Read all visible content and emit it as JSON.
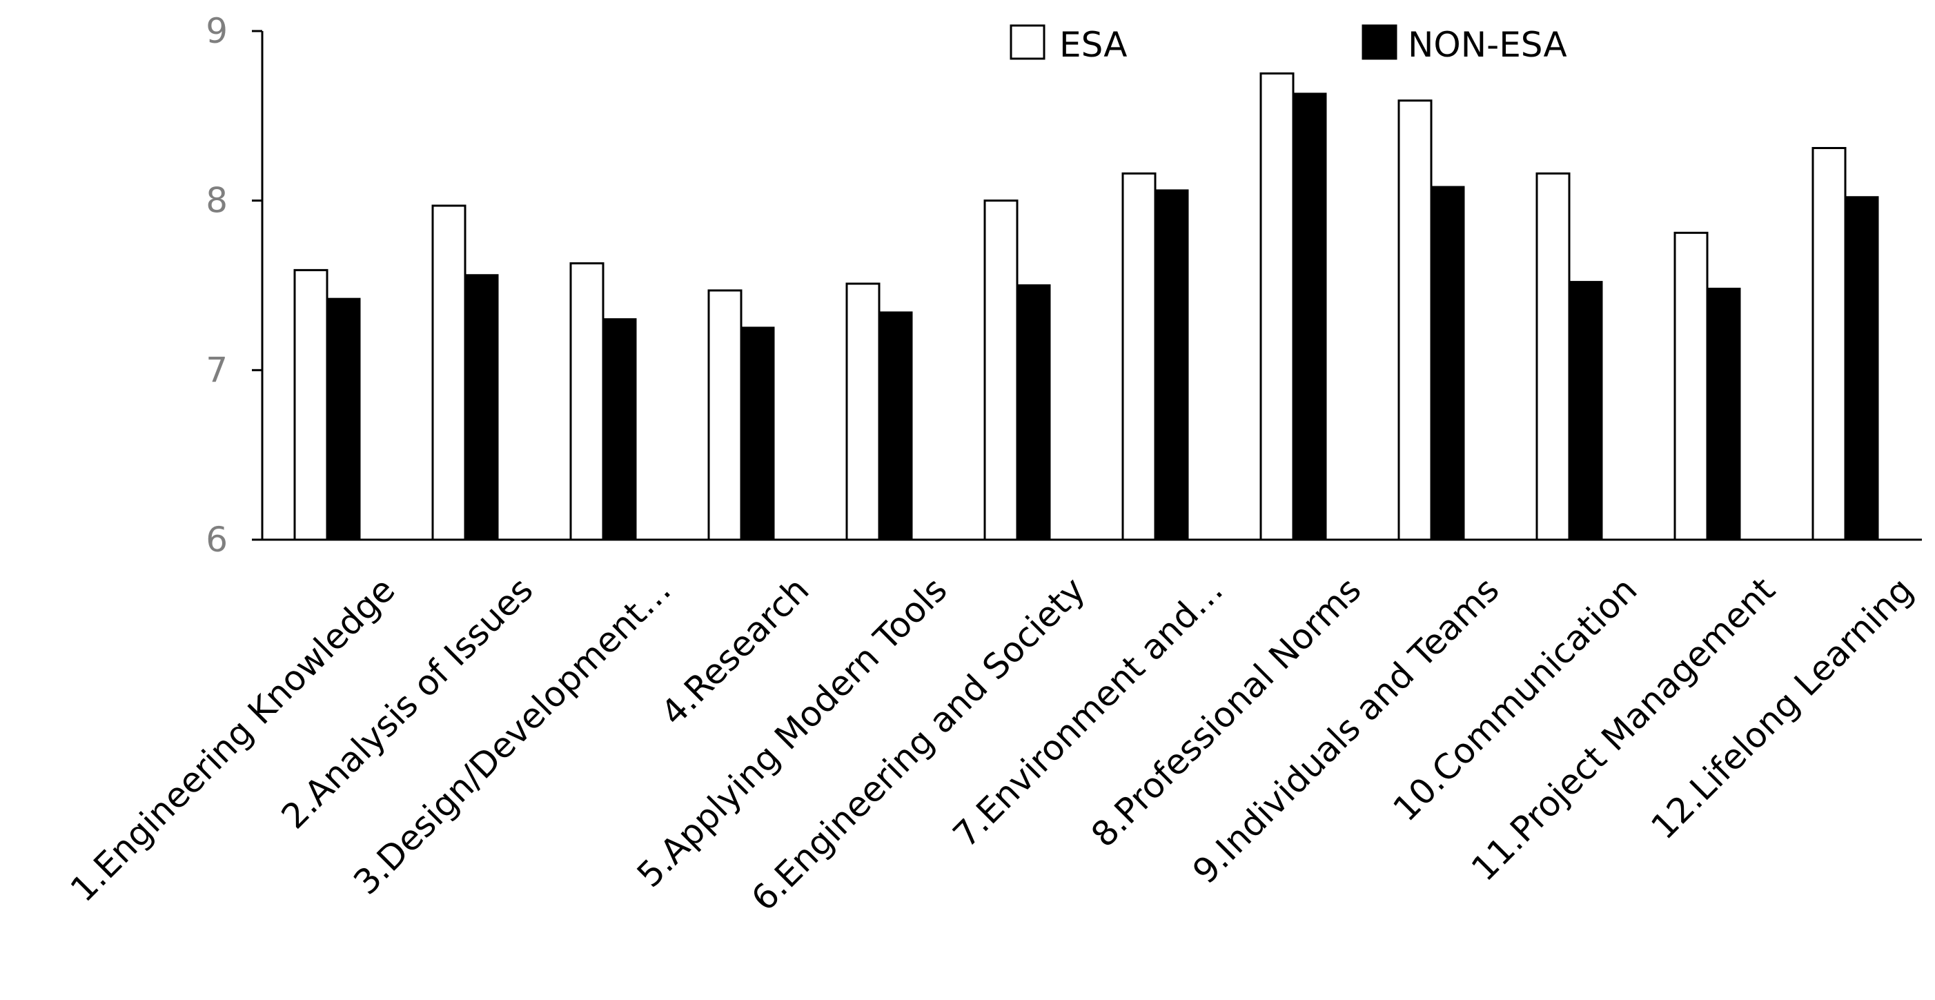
{
  "chart_data": {
    "type": "bar",
    "title": "",
    "xlabel": "",
    "ylabel": "",
    "ylim": [
      6,
      9
    ],
    "yticks": [
      "6",
      "7",
      "8",
      "9"
    ],
    "grid": false,
    "legend_position": "top-right",
    "categories": [
      "1.Engineering Knowledge",
      "2.Analysis of Issues",
      "3.Design/Development…",
      "4.Research",
      "5.Applying Modern Tools",
      "6.Engineering and Society",
      "7.Environment and…",
      "8.Professional Norms",
      "9.Individuals and Teams",
      "10.Communication",
      "11.Project Management",
      "12.Lifelong Learning"
    ],
    "series": [
      {
        "name": "ESA",
        "color": "#ffffff",
        "values": [
          7.59,
          7.97,
          7.63,
          7.47,
          7.51,
          8.0,
          8.16,
          8.75,
          8.59,
          8.16,
          7.81,
          8.31
        ]
      },
      {
        "name": "NON-ESA",
        "color": "#000000",
        "values": [
          7.42,
          7.56,
          7.3,
          7.25,
          7.34,
          7.5,
          8.06,
          8.63,
          8.08,
          7.52,
          7.48,
          8.02
        ]
      }
    ]
  }
}
